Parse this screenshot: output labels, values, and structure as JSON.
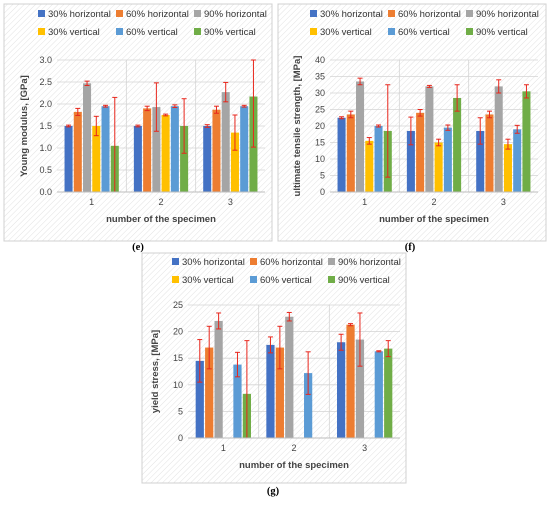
{
  "series_colors": [
    "#4472C4",
    "#ED7D31",
    "#A5A5A5",
    "#FFC000",
    "#5B9BD5",
    "#70AD47"
  ],
  "chart_data": [
    {
      "type": "bar",
      "panel_label": "(e)",
      "categories": [
        "1",
        "2",
        "3"
      ],
      "xlabel": "number of the specimen",
      "ylabel": "Young modulus, [GPa]",
      "ylim": [
        0,
        3.0
      ],
      "yticks": [
        "0.0",
        "0.5",
        "1.0",
        "1.5",
        "2.0",
        "2.5",
        "3.0"
      ],
      "grid": true,
      "series": [
        {
          "name": "30% horizontal",
          "values": [
            1.5,
            1.5,
            1.5
          ],
          "err": [
            0.02,
            0.02,
            0.03
          ]
        },
        {
          "name": "60% horizontal",
          "values": [
            1.82,
            1.9,
            1.87
          ],
          "err": [
            0.08,
            0.05,
            0.08
          ]
        },
        {
          "name": "90% horizontal",
          "values": [
            2.47,
            1.93,
            2.27
          ],
          "err": [
            0.05,
            0.55,
            0.22
          ]
        },
        {
          "name": "30% vertical",
          "values": [
            1.5,
            1.75,
            1.35
          ],
          "err": [
            0.22,
            0.02,
            0.4
          ]
        },
        {
          "name": "60% vertical",
          "values": [
            1.95,
            1.95,
            1.95
          ],
          "err": [
            0.02,
            0.03,
            0.02
          ]
        },
        {
          "name": "90% vertical",
          "values": [
            1.05,
            1.5,
            2.17
          ],
          "err": [
            1.1,
            0.62,
            1.15
          ]
        }
      ]
    },
    {
      "type": "bar",
      "panel_label": "(f)",
      "categories": [
        "1",
        "2",
        "3"
      ],
      "xlabel": "number of the specimen",
      "ylabel": "ultimate tensile strength, [MPa]",
      "ylim": [
        0,
        40
      ],
      "yticks": [
        "0",
        "5",
        "10",
        "15",
        "20",
        "25",
        "30",
        "35",
        "40"
      ],
      "grid": true,
      "series": [
        {
          "name": "30% horizontal",
          "values": [
            22.5,
            18.5,
            18.5
          ],
          "err": [
            0.3,
            4.2,
            4.0
          ]
        },
        {
          "name": "60% horizontal",
          "values": [
            23.5,
            24.0,
            23.5
          ],
          "err": [
            1.0,
            1.0,
            1.0
          ]
        },
        {
          "name": "90% horizontal",
          "values": [
            33.5,
            32.0,
            32.0
          ],
          "err": [
            1.0,
            0.3,
            2.0
          ]
        },
        {
          "name": "30% vertical",
          "values": [
            15.5,
            15.0,
            14.5
          ],
          "err": [
            1.0,
            1.0,
            1.5
          ]
        },
        {
          "name": "60% vertical",
          "values": [
            20.0,
            19.5,
            19.0
          ],
          "err": [
            0.3,
            0.8,
            1.2
          ]
        },
        {
          "name": "90% vertical",
          "values": [
            18.5,
            28.5,
            30.5
          ],
          "err": [
            14.0,
            4.0,
            2.0
          ]
        }
      ]
    },
    {
      "type": "bar",
      "panel_label": "(g)",
      "categories": [
        "1",
        "2",
        "3"
      ],
      "xlabel": "number of the specimen",
      "ylabel": "yield stress, [MPa]",
      "ylim": [
        0,
        25
      ],
      "yticks": [
        "0",
        "5",
        "10",
        "15",
        "20",
        "25"
      ],
      "grid": true,
      "series": [
        {
          "name": "30% horizontal",
          "values": [
            14.5,
            17.5,
            18.0
          ],
          "err": [
            4.0,
            1.5,
            1.5
          ]
        },
        {
          "name": "60% horizontal",
          "values": [
            17.0,
            17.0,
            21.3
          ],
          "err": [
            4.0,
            4.0,
            0.2
          ]
        },
        {
          "name": "90% horizontal",
          "values": [
            22.0,
            22.8,
            18.5
          ],
          "err": [
            1.5,
            0.8,
            5.0
          ]
        },
        {
          "name": "30% vertical",
          "values": [
            0,
            0,
            0
          ],
          "err": [
            0,
            0,
            0
          ]
        },
        {
          "name": "60% vertical",
          "values": [
            13.8,
            12.2,
            16.3
          ],
          "err": [
            2.3,
            4.0,
            0.1
          ]
        },
        {
          "name": "90% vertical",
          "values": [
            8.3,
            0,
            16.8
          ],
          "err": [
            10.0,
            0,
            1.5
          ]
        }
      ]
    }
  ]
}
